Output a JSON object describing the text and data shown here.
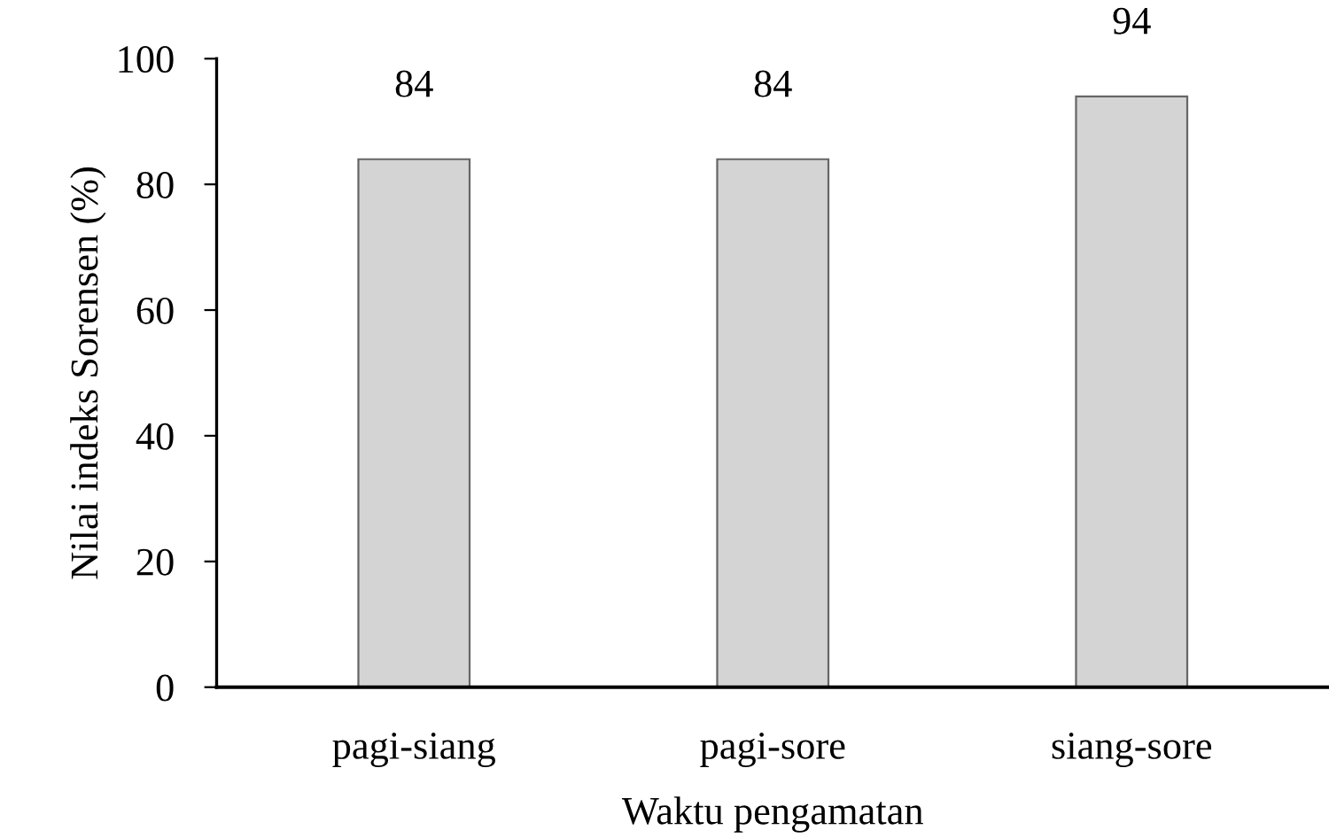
{
  "chart_data": {
    "type": "bar",
    "xlabel": "Waktu pengamatan",
    "ylabel": "Nilai indeks Sorensen (%)",
    "categories": [
      "pagi-siang",
      "pagi-sore",
      "siang-sore"
    ],
    "values": [
      84,
      84,
      94
    ],
    "color": "#d4d4d4",
    "ylim": [
      0,
      100
    ],
    "yticks": [
      0,
      20,
      40,
      60,
      80,
      100
    ],
    "grid": false,
    "data_labels": true
  }
}
